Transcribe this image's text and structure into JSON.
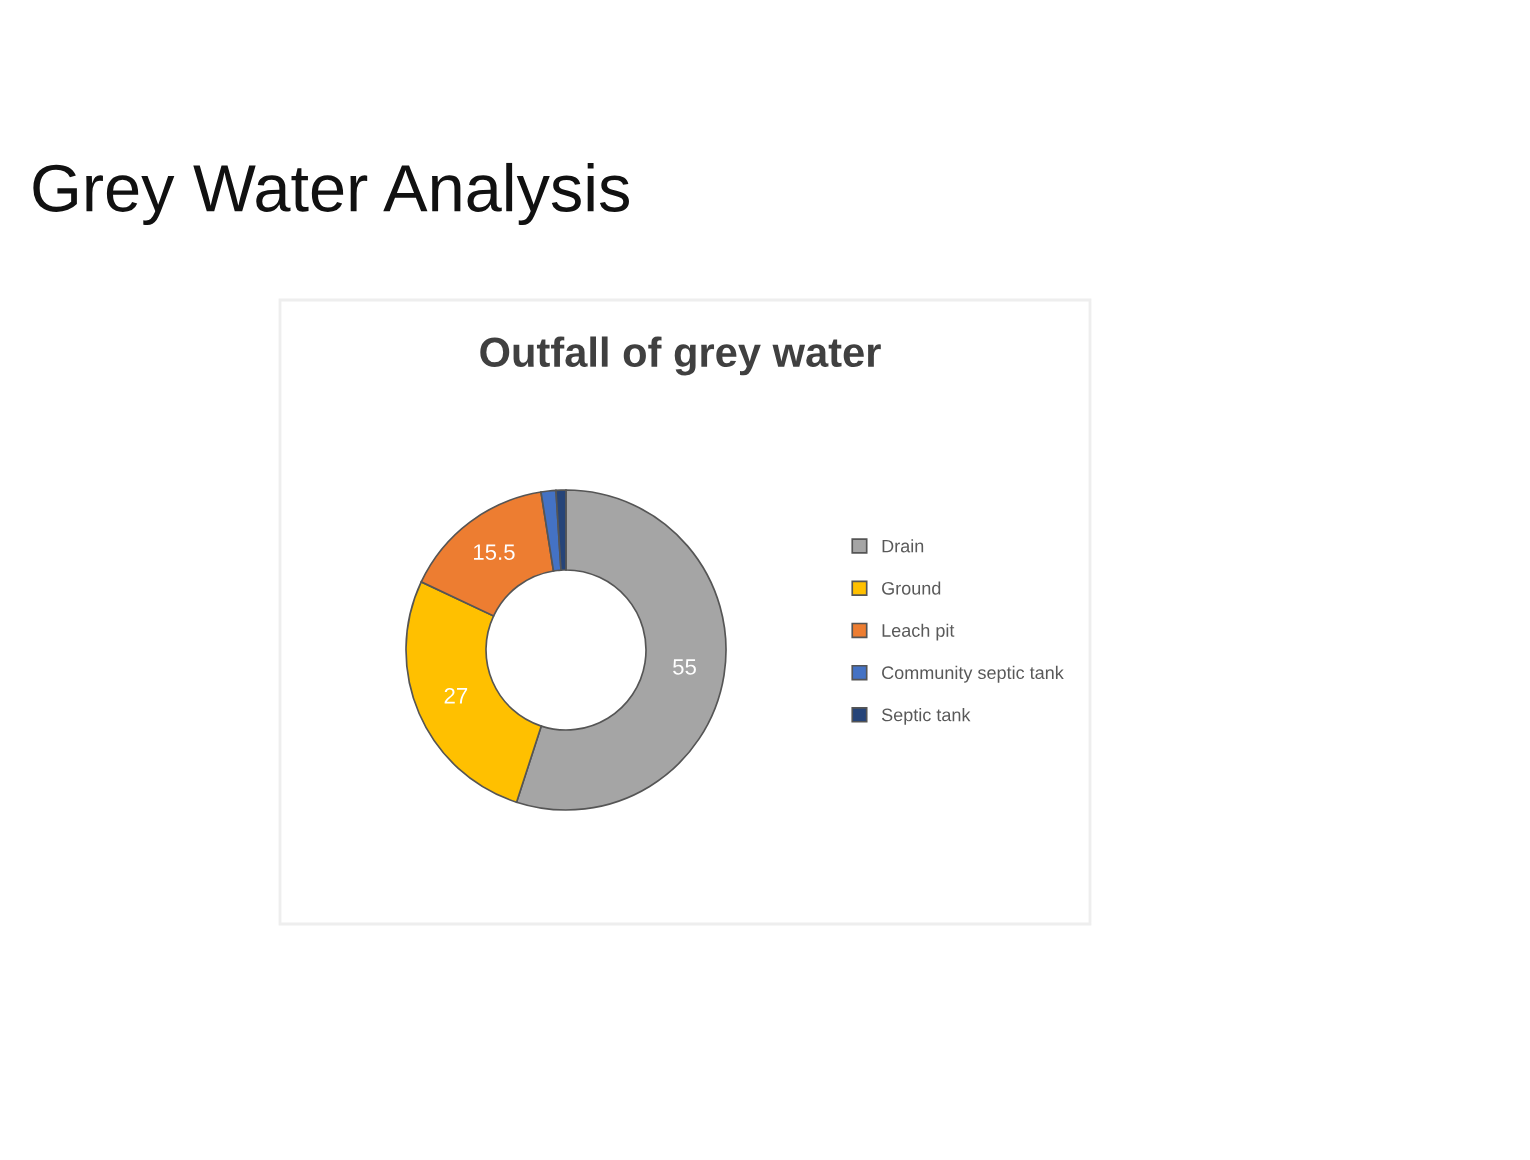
{
  "chart_data": {
    "type": "donut",
    "title": "Grey Water Analysis",
    "subtitle": "Outfall of grey water",
    "categories": [
      "Drain",
      "Ground",
      "Leach pit",
      "Community septic tank",
      "Septic tank"
    ],
    "values": [
      55,
      27,
      15.5,
      1.5,
      1.0
    ],
    "value_labels": [
      "55",
      "27",
      "15.5",
      null,
      null
    ],
    "colors": [
      "#a5a5a5",
      "#ffc000",
      "#ed7d31",
      "#4472c4",
      "#264478"
    ],
    "legend": "right"
  }
}
